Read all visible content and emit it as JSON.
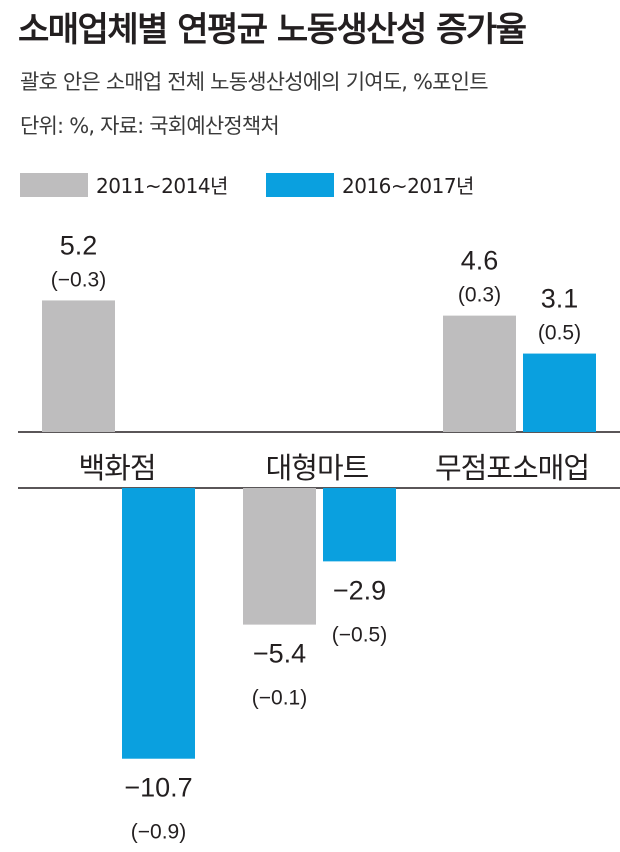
{
  "title": "소매업체별 연평균 노동생산성 증가율",
  "subtitle": "괄호 안은 소매업 전체 노동생산성에의 기여도, %포인트",
  "source": "단위: %, 자료: 국회예산정책처",
  "colors": {
    "gray": "#bebdbe",
    "blue": "#0aa0df",
    "axis": "#231f20"
  },
  "chart_data": {
    "type": "bar",
    "categories": [
      "백화점",
      "대형마트",
      "무점포소매업"
    ],
    "series": [
      {
        "name": "2011~2014년",
        "values": [
          5.2,
          -5.4,
          4.6
        ],
        "labels": [
          "5.2",
          "−5.4",
          "4.6"
        ],
        "contributions": [
          "(−0.3)",
          "(−0.1)",
          "(0.3)"
        ]
      },
      {
        "name": "2016~2017년",
        "values": [
          -10.7,
          -2.9,
          3.1
        ],
        "labels": [
          "−10.7",
          "−2.9",
          "3.1"
        ],
        "contributions": [
          "(−0.9)",
          "(−0.5)",
          "(0.5)"
        ]
      }
    ],
    "unit": "%",
    "ylim": [
      -10.7,
      5.2
    ],
    "grid": false,
    "legend": "top-left"
  }
}
